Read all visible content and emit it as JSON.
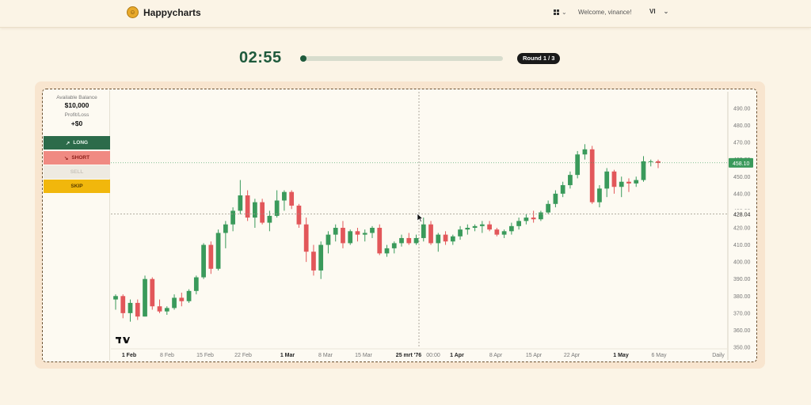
{
  "nav": {
    "brand": "Happycharts",
    "welcome": "Welcome, vinance!",
    "lang": "VI"
  },
  "game": {
    "timer": "02:55",
    "round": "Round 1 / 3",
    "progress": 0.0
  },
  "panel": {
    "balance_label": "Available Balance",
    "balance_value": "$10,000",
    "pl_label": "Profit/Loss",
    "pl_value": "+$0",
    "long_label": "LONG",
    "short_label": "SHORT",
    "sell_label": "SELL",
    "skip_label": "SKIP"
  },
  "colors": {
    "up": "#3a9a5b",
    "down": "#e2575a",
    "accent": "#1e5a3c"
  },
  "chart_data": {
    "type": "candlestick",
    "interval_label": "Daily",
    "ylim": [
      350,
      500
    ],
    "y_ticks": [
      "490.00",
      "480.00",
      "470.00",
      "460.00",
      "450.00",
      "440.00",
      "430.00",
      "420.00",
      "410.00",
      "400.00",
      "390.00",
      "380.00",
      "370.00",
      "360.00",
      "350.00"
    ],
    "x_ticks": [
      "1 Feb",
      "8 Feb",
      "15 Feb",
      "22 Feb",
      "1 Mar",
      "8 Mar",
      "15 Mar",
      "25 mrt '76",
      "00:00",
      "1 Apr",
      "8 Apr",
      "15 Apr",
      "22 Apr",
      "1 May",
      "6 May"
    ],
    "last_price_label": "458.10",
    "last_price": 458.1,
    "crosshair_label": "428.04",
    "crosshair_price": 428.04,
    "ohlc": [
      [
        378,
        381,
        372,
        380
      ],
      [
        380,
        381,
        367,
        370
      ],
      [
        370,
        378,
        365,
        376
      ],
      [
        376,
        378,
        366,
        368
      ],
      [
        368,
        392,
        368,
        390
      ],
      [
        390,
        391,
        372,
        374
      ],
      [
        374,
        378,
        370,
        371
      ],
      [
        371,
        374,
        369,
        373
      ],
      [
        373,
        381,
        372,
        379
      ],
      [
        379,
        382,
        374,
        377
      ],
      [
        377,
        384,
        376,
        383
      ],
      [
        383,
        392,
        381,
        391
      ],
      [
        391,
        411,
        390,
        410
      ],
      [
        410,
        412,
        393,
        396
      ],
      [
        396,
        419,
        395,
        417
      ],
      [
        417,
        424,
        408,
        422
      ],
      [
        422,
        432,
        418,
        430
      ],
      [
        430,
        448,
        428,
        439
      ],
      [
        439,
        442,
        424,
        426
      ],
      [
        426,
        437,
        420,
        435
      ],
      [
        435,
        437,
        422,
        423
      ],
      [
        423,
        430,
        418,
        427
      ],
      [
        427,
        442,
        426,
        436
      ],
      [
        436,
        442,
        430,
        441
      ],
      [
        441,
        442,
        431,
        433
      ],
      [
        433,
        434,
        420,
        422
      ],
      [
        422,
        426,
        400,
        406
      ],
      [
        406,
        410,
        392,
        395
      ],
      [
        395,
        412,
        390,
        410
      ],
      [
        410,
        418,
        405,
        416
      ],
      [
        416,
        422,
        412,
        420
      ],
      [
        420,
        424,
        408,
        411
      ],
      [
        411,
        419,
        410,
        418
      ],
      [
        418,
        420,
        412,
        416
      ],
      [
        416,
        419,
        412,
        417
      ],
      [
        417,
        421,
        414,
        420
      ],
      [
        420,
        422,
        404,
        405
      ],
      [
        405,
        410,
        403,
        408
      ],
      [
        408,
        412,
        405,
        411
      ],
      [
        411,
        416,
        409,
        414
      ],
      [
        414,
        417,
        410,
        411
      ],
      [
        411,
        416,
        410,
        414
      ],
      [
        414,
        426,
        412,
        422
      ],
      [
        422,
        424,
        410,
        411
      ],
      [
        411,
        417,
        406,
        416
      ],
      [
        416,
        418,
        410,
        412
      ],
      [
        412,
        416,
        410,
        415
      ],
      [
        415,
        421,
        413,
        419
      ],
      [
        419,
        422,
        416,
        420
      ],
      [
        420,
        422,
        418,
        421
      ],
      [
        421,
        424,
        417,
        422
      ],
      [
        422,
        424,
        418,
        419
      ],
      [
        419,
        420,
        415,
        416
      ],
      [
        416,
        419,
        414,
        418
      ],
      [
        418,
        423,
        416,
        421
      ],
      [
        421,
        426,
        419,
        424
      ],
      [
        424,
        428,
        422,
        426
      ],
      [
        426,
        430,
        423,
        425
      ],
      [
        425,
        430,
        424,
        429
      ],
      [
        429,
        436,
        428,
        434
      ],
      [
        434,
        442,
        432,
        440
      ],
      [
        440,
        447,
        438,
        445
      ],
      [
        445,
        453,
        443,
        451
      ],
      [
        451,
        465,
        449,
        463
      ],
      [
        463,
        469,
        460,
        466
      ],
      [
        466,
        468,
        434,
        435
      ],
      [
        435,
        445,
        432,
        443
      ],
      [
        443,
        455,
        438,
        453
      ],
      [
        453,
        454,
        440,
        444
      ],
      [
        444,
        450,
        438,
        447
      ],
      [
        447,
        449,
        441,
        446
      ],
      [
        446,
        450,
        444,
        448
      ],
      [
        448,
        462,
        447,
        459
      ],
      [
        459,
        460,
        456,
        459
      ],
      [
        459,
        460,
        455,
        458
      ]
    ]
  }
}
